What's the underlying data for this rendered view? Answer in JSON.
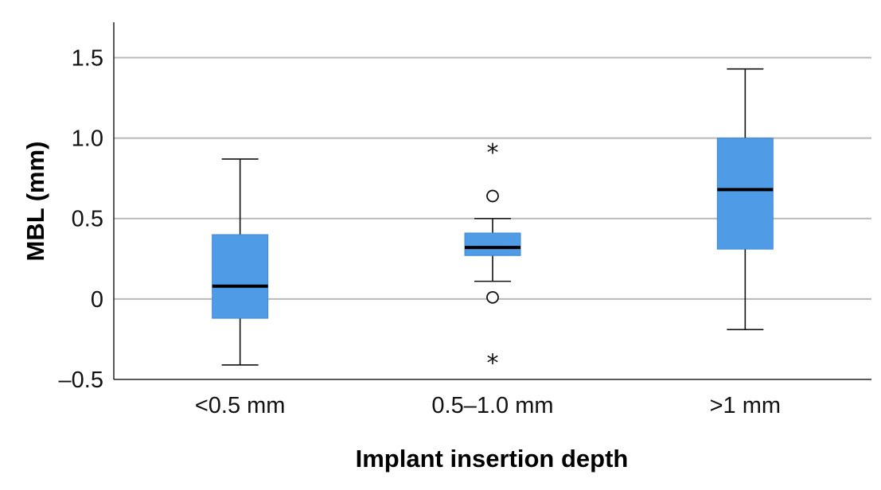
{
  "chart_data": {
    "type": "boxplot",
    "xlabel": "Implant insertion depth",
    "ylabel": "MBL (mm)",
    "ylim": [
      -0.5,
      1.72
    ],
    "yticks": [
      {
        "value": -0.5,
        "label": "–0.5"
      },
      {
        "value": 0,
        "label": "0"
      },
      {
        "value": 0.5,
        "label": "0.5"
      },
      {
        "value": 1.0,
        "label": "1.0"
      },
      {
        "value": 1.5,
        "label": "1.5"
      }
    ],
    "grid": true,
    "box_color": "#4f9be6",
    "categories": [
      "<0.5 mm",
      "0.5–1.0 mm",
      ">1 mm"
    ],
    "boxes": [
      {
        "category": "<0.5 mm",
        "whisker_low": -0.41,
        "q1": -0.12,
        "median": 0.08,
        "q3": 0.4,
        "whisker_high": 0.87,
        "outliers": [],
        "extremes": []
      },
      {
        "category": "0.5–1.0 mm",
        "whisker_low": 0.11,
        "q1": 0.27,
        "median": 0.32,
        "q3": 0.41,
        "whisker_high": 0.5,
        "outliers": [
          0.64,
          0.01
        ],
        "extremes": [
          0.93,
          -0.38
        ]
      },
      {
        "category": ">1 mm",
        "whisker_low": -0.19,
        "q1": 0.31,
        "median": 0.68,
        "q3": 1.0,
        "whisker_high": 1.43,
        "outliers": [],
        "extremes": []
      }
    ]
  }
}
